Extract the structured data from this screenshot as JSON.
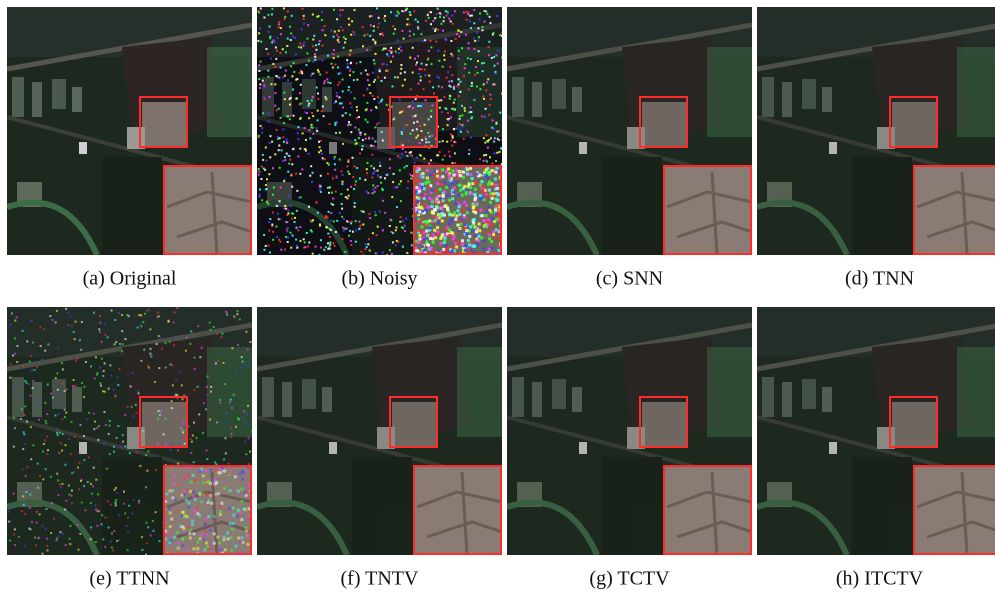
{
  "panels": [
    {
      "caption": "(a) Original"
    },
    {
      "caption": "(b) Noisy"
    },
    {
      "caption": "(c) SNN"
    },
    {
      "caption": "(d) TNN"
    },
    {
      "caption": "(e) TTNN"
    },
    {
      "caption": "(f) TNTV"
    },
    {
      "caption": "(g) TCTV"
    },
    {
      "caption": "(h) ITCTV"
    }
  ]
}
